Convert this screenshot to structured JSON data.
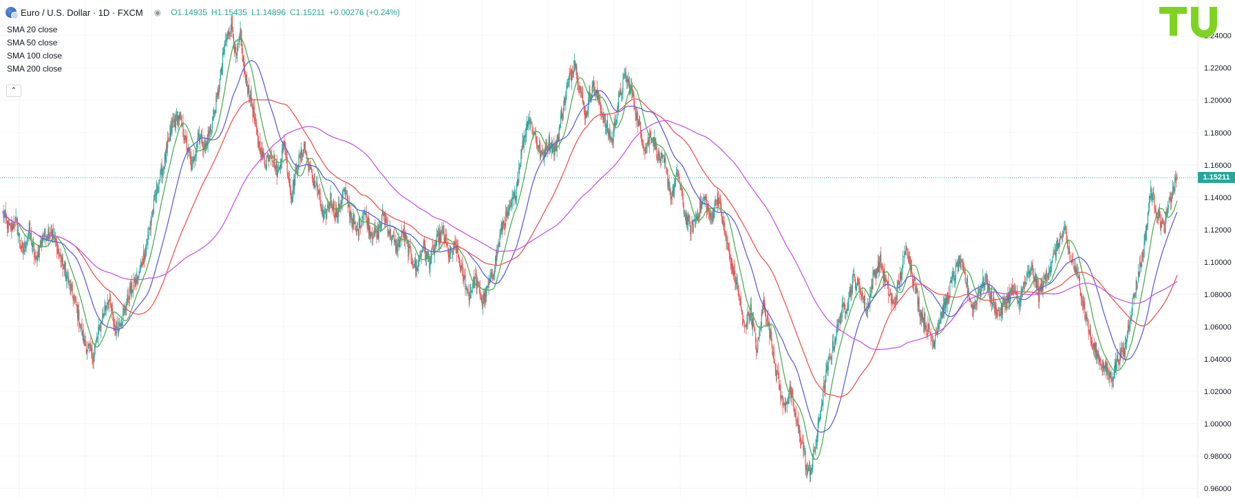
{
  "header": {
    "symbol_title": "Euro / U.S. Dollar · 1D · FXCM",
    "open": "O1.14935",
    "high": "H1.15435",
    "low": "L1.14896",
    "close": "C1.15211",
    "change": "+0.00276 (+0.24%)"
  },
  "indicators": [
    {
      "label": "SMA 20 close",
      "color": "#4caf50"
    },
    {
      "label": "SMA 50 close",
      "color": "#5b5fde"
    },
    {
      "label": "SMA 100 close",
      "color": "#ef5350"
    },
    {
      "label": "SMA 200 close",
      "color": "#c655e8"
    }
  ],
  "price_tag": "1.15211",
  "colors": {
    "up": "#26a69a",
    "down": "#ef5350",
    "grid": "#f0f3fa",
    "logo": "#7ed321"
  },
  "icons": [
    "collapse-chevron-icon",
    "eye-icon",
    "currency-flag-icon",
    "tradingview-logo-icon"
  ],
  "chart_data": {
    "type": "candlestick",
    "title": "Euro / U.S. Dollar · 1D · FXCM",
    "ylim": [
      0.954,
      1.262
    ],
    "y_ticks": [
      "0.96000",
      "0.98000",
      "1.00000",
      "1.02000",
      "1.04000",
      "1.06000",
      "1.08000",
      "1.10000",
      "1.12000",
      "1.14000",
      "1.16000",
      "1.18000",
      "1.20000",
      "1.22000",
      "1.24000"
    ],
    "last_price": 1.15211,
    "price_path": [
      [
        0,
        1.13
      ],
      [
        3,
        1.12
      ],
      [
        6,
        1.125
      ],
      [
        9,
        1.105
      ],
      [
        12,
        1.12
      ],
      [
        15,
        1.1
      ],
      [
        18,
        1.115
      ],
      [
        22,
        1.12
      ],
      [
        28,
        1.095
      ],
      [
        33,
        1.075
      ],
      [
        37,
        1.05
      ],
      [
        41,
        1.042
      ],
      [
        45,
        1.065
      ],
      [
        48,
        1.078
      ],
      [
        51,
        1.058
      ],
      [
        55,
        1.068
      ],
      [
        58,
        1.082
      ],
      [
        62,
        1.092
      ],
      [
        66,
        1.115
      ],
      [
        70,
        1.145
      ],
      [
        74,
        1.165
      ],
      [
        77,
        1.185
      ],
      [
        80,
        1.19
      ],
      [
        83,
        1.175
      ],
      [
        86,
        1.158
      ],
      [
        89,
        1.18
      ],
      [
        92,
        1.17
      ],
      [
        95,
        1.185
      ],
      [
        98,
        1.205
      ],
      [
        101,
        1.235
      ],
      [
        104,
        1.248
      ],
      [
        106,
        1.225
      ],
      [
        108,
        1.24
      ],
      [
        110,
        1.215
      ],
      [
        113,
        1.2
      ],
      [
        116,
        1.175
      ],
      [
        119,
        1.162
      ],
      [
        122,
        1.168
      ],
      [
        125,
        1.155
      ],
      [
        128,
        1.175
      ],
      [
        131,
        1.14
      ],
      [
        134,
        1.16
      ],
      [
        137,
        1.172
      ],
      [
        140,
        1.155
      ],
      [
        143,
        1.145
      ],
      [
        146,
        1.125
      ],
      [
        149,
        1.14
      ],
      [
        152,
        1.128
      ],
      [
        155,
        1.145
      ],
      [
        158,
        1.13
      ],
      [
        161,
        1.118
      ],
      [
        164,
        1.132
      ],
      [
        167,
        1.12
      ],
      [
        170,
        1.115
      ],
      [
        173,
        1.13
      ],
      [
        176,
        1.118
      ],
      [
        179,
        1.108
      ],
      [
        182,
        1.118
      ],
      [
        185,
        1.105
      ],
      [
        188,
        1.095
      ],
      [
        191,
        1.11
      ],
      [
        194,
        1.1
      ],
      [
        197,
        1.112
      ],
      [
        200,
        1.118
      ],
      [
        203,
        1.104
      ],
      [
        206,
        1.11
      ],
      [
        209,
        1.092
      ],
      [
        212,
        1.08
      ],
      [
        215,
        1.09
      ],
      [
        218,
        1.075
      ],
      [
        221,
        1.085
      ],
      [
        224,
        1.1
      ],
      [
        227,
        1.122
      ],
      [
        230,
        1.13
      ],
      [
        233,
        1.142
      ],
      [
        236,
        1.17
      ],
      [
        239,
        1.19
      ],
      [
        242,
        1.178
      ],
      [
        245,
        1.165
      ],
      [
        248,
        1.175
      ],
      [
        251,
        1.168
      ],
      [
        254,
        1.19
      ],
      [
        257,
        1.21
      ],
      [
        260,
        1.225
      ],
      [
        262,
        1.21
      ],
      [
        265,
        1.19
      ],
      [
        268,
        1.21
      ],
      [
        271,
        1.2
      ],
      [
        274,
        1.185
      ],
      [
        277,
        1.175
      ],
      [
        280,
        1.2
      ],
      [
        283,
        1.215
      ],
      [
        286,
        1.205
      ],
      [
        289,
        1.185
      ],
      [
        292,
        1.17
      ],
      [
        295,
        1.18
      ],
      [
        298,
        1.165
      ],
      [
        301,
        1.16
      ],
      [
        304,
        1.14
      ],
      [
        307,
        1.155
      ],
      [
        310,
        1.13
      ],
      [
        313,
        1.12
      ],
      [
        316,
        1.13
      ],
      [
        319,
        1.14
      ],
      [
        322,
        1.125
      ],
      [
        325,
        1.142
      ],
      [
        328,
        1.12
      ],
      [
        331,
        1.1
      ],
      [
        334,
        1.085
      ],
      [
        337,
        1.06
      ],
      [
        340,
        1.07
      ],
      [
        343,
        1.045
      ],
      [
        346,
        1.075
      ],
      [
        349,
        1.055
      ],
      [
        352,
        1.03
      ],
      [
        355,
        1.01
      ],
      [
        358,
        1.02
      ],
      [
        361,
        1.0
      ],
      [
        364,
        0.985
      ],
      [
        366,
        0.968
      ],
      [
        368,
        0.975
      ],
      [
        370,
        0.99
      ],
      [
        372,
        1.01
      ],
      [
        375,
        1.035
      ],
      [
        378,
        1.05
      ],
      [
        381,
        1.068
      ],
      [
        384,
        1.075
      ],
      [
        387,
        1.09
      ],
      [
        390,
        1.082
      ],
      [
        393,
        1.07
      ],
      [
        396,
        1.092
      ],
      [
        399,
        1.1
      ],
      [
        402,
        1.085
      ],
      [
        405,
        1.072
      ],
      [
        408,
        1.09
      ],
      [
        411,
        1.11
      ],
      [
        414,
        1.09
      ],
      [
        417,
        1.07
      ],
      [
        420,
        1.06
      ],
      [
        423,
        1.05
      ],
      [
        426,
        1.065
      ],
      [
        429,
        1.075
      ],
      [
        432,
        1.09
      ],
      [
        435,
        1.1
      ],
      [
        438,
        1.088
      ],
      [
        441,
        1.07
      ],
      [
        444,
        1.082
      ],
      [
        447,
        1.09
      ],
      [
        450,
        1.075
      ],
      [
        453,
        1.068
      ],
      [
        456,
        1.075
      ],
      [
        459,
        1.082
      ],
      [
        462,
        1.075
      ],
      [
        465,
        1.088
      ],
      [
        468,
        1.095
      ],
      [
        471,
        1.08
      ],
      [
        474,
        1.09
      ],
      [
        477,
        1.1
      ],
      [
        480,
        1.112
      ],
      [
        483,
        1.118
      ],
      [
        486,
        1.1
      ],
      [
        489,
        1.09
      ],
      [
        492,
        1.07
      ],
      [
        495,
        1.05
      ],
      [
        498,
        1.042
      ],
      [
        501,
        1.035
      ],
      [
        504,
        1.028
      ],
      [
        507,
        1.04
      ],
      [
        510,
        1.045
      ],
      [
        513,
        1.07
      ],
      [
        516,
        1.09
      ],
      [
        519,
        1.11
      ],
      [
        522,
        1.145
      ],
      [
        525,
        1.13
      ],
      [
        528,
        1.12
      ],
      [
        531,
        1.14
      ],
      [
        534,
        1.152
      ]
    ],
    "sma_series": [
      {
        "name": "SMA 20 close",
        "period": 20
      },
      {
        "name": "SMA 50 close",
        "period": 50
      },
      {
        "name": "SMA 100 close",
        "period": 100
      },
      {
        "name": "SMA 200 close",
        "period": 200
      }
    ],
    "grid": true
  }
}
